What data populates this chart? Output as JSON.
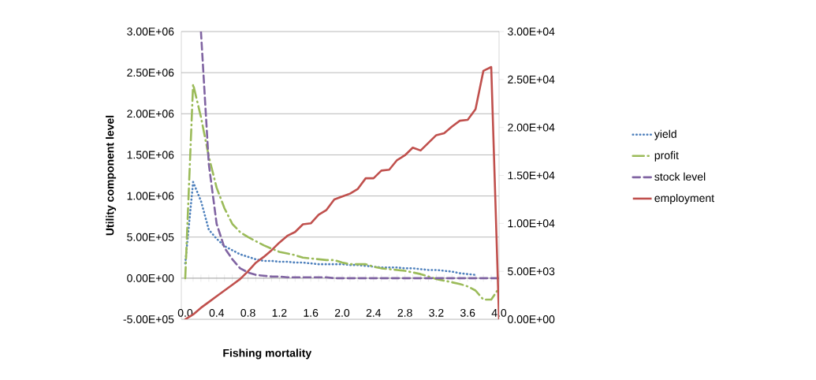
{
  "chart_data": {
    "type": "line",
    "xlabel": "Fishing mortality",
    "ylabel": "Utility component level",
    "categories": [
      "0.0",
      null,
      null,
      null,
      "0.4",
      null,
      null,
      null,
      "0.8",
      null,
      null,
      null,
      "1.2",
      null,
      null,
      null,
      "1.6",
      null,
      null,
      null,
      "2.0",
      null,
      null,
      null,
      "2.4",
      null,
      null,
      null,
      "2.8",
      null,
      null,
      null,
      "3.2",
      null,
      null,
      null,
      "3.6",
      null,
      null,
      null,
      "4.0"
    ],
    "series": [
      {
        "name": "yield",
        "color": "#4f81bd",
        "line_style": "dotted",
        "values": [
          180000,
          1170000,
          940000,
          590000,
          480000,
          390000,
          340000,
          290000,
          260000,
          230000,
          210000,
          210000,
          200000,
          200000,
          190000,
          190000,
          180000,
          170000,
          170000,
          170000,
          170000,
          160000,
          160000,
          150000,
          140000,
          130000,
          130000,
          130000,
          120000,
          120000,
          110000,
          100000,
          100000,
          90000,
          80000,
          60000,
          50000,
          40000,
          null,
          null,
          null
        ]
      },
      {
        "name": "profit",
        "color": "#9bbb59",
        "line_style": "dashdot",
        "values": [
          0,
          2360000,
          1960000,
          1480000,
          1100000,
          850000,
          660000,
          560000,
          500000,
          450000,
          400000,
          360000,
          320000,
          300000,
          280000,
          250000,
          240000,
          230000,
          220000,
          220000,
          190000,
          170000,
          170000,
          170000,
          140000,
          120000,
          110000,
          100000,
          90000,
          70000,
          50000,
          20000,
          -10000,
          -30000,
          -50000,
          -70000,
          -100000,
          -150000,
          -260000,
          -260000,
          -120000
        ]
      },
      {
        "name": "stock level",
        "color": "#8064a2",
        "line_style": "dashed",
        "values": [
          null,
          null,
          3000000,
          1390000,
          660000,
          370000,
          230000,
          120000,
          70000,
          40000,
          30000,
          20000,
          20000,
          10000,
          10000,
          10000,
          10000,
          10000,
          10000,
          0,
          0,
          0,
          0,
          0,
          0,
          0,
          0,
          0,
          0,
          0,
          0,
          0,
          0,
          0,
          0,
          0,
          0,
          0,
          0,
          0,
          0
        ]
      },
      {
        "name": "employment",
        "color": "#c0504d",
        "line_style": "solid",
        "axis": "y2",
        "values": [
          0,
          500,
          1200,
          1800,
          2400,
          3000,
          3600,
          4200,
          5000,
          5900,
          6500,
          7200,
          8000,
          8700,
          9100,
          9900,
          10000,
          10900,
          11400,
          12500,
          12800,
          13100,
          13600,
          14700,
          14700,
          15500,
          15600,
          16600,
          17100,
          17900,
          17600,
          18400,
          19200,
          19400,
          20100,
          20700,
          20800,
          21900,
          25900,
          26300,
          0
        ]
      }
    ],
    "ylim": [
      -500000,
      3000000
    ],
    "yticks": [
      {
        "value": -500000,
        "label": "-5.00E+05"
      },
      {
        "value": 0,
        "label": "0.00E+00"
      },
      {
        "value": 500000,
        "label": "5.00E+05"
      },
      {
        "value": 1000000,
        "label": "1.00E+06"
      },
      {
        "value": 1500000,
        "label": "1.50E+06"
      },
      {
        "value": 2000000,
        "label": "2.00E+06"
      },
      {
        "value": 2500000,
        "label": "2.50E+06"
      },
      {
        "value": 3000000,
        "label": "3.00E+06"
      }
    ],
    "y2lim": [
      0,
      30000
    ],
    "y2ticks": [
      {
        "value": 0,
        "label": "0.00E+00"
      },
      {
        "value": 5000,
        "label": "5.00E+03"
      },
      {
        "value": 10000,
        "label": "1.00E+04"
      },
      {
        "value": 15000,
        "label": "1.50E+04"
      },
      {
        "value": 20000,
        "label": "2.00E+04"
      },
      {
        "value": 25000,
        "label": "2.50E+04"
      },
      {
        "value": 30000,
        "label": "3.00E+04"
      }
    ],
    "grid": "y",
    "legend": "right"
  }
}
